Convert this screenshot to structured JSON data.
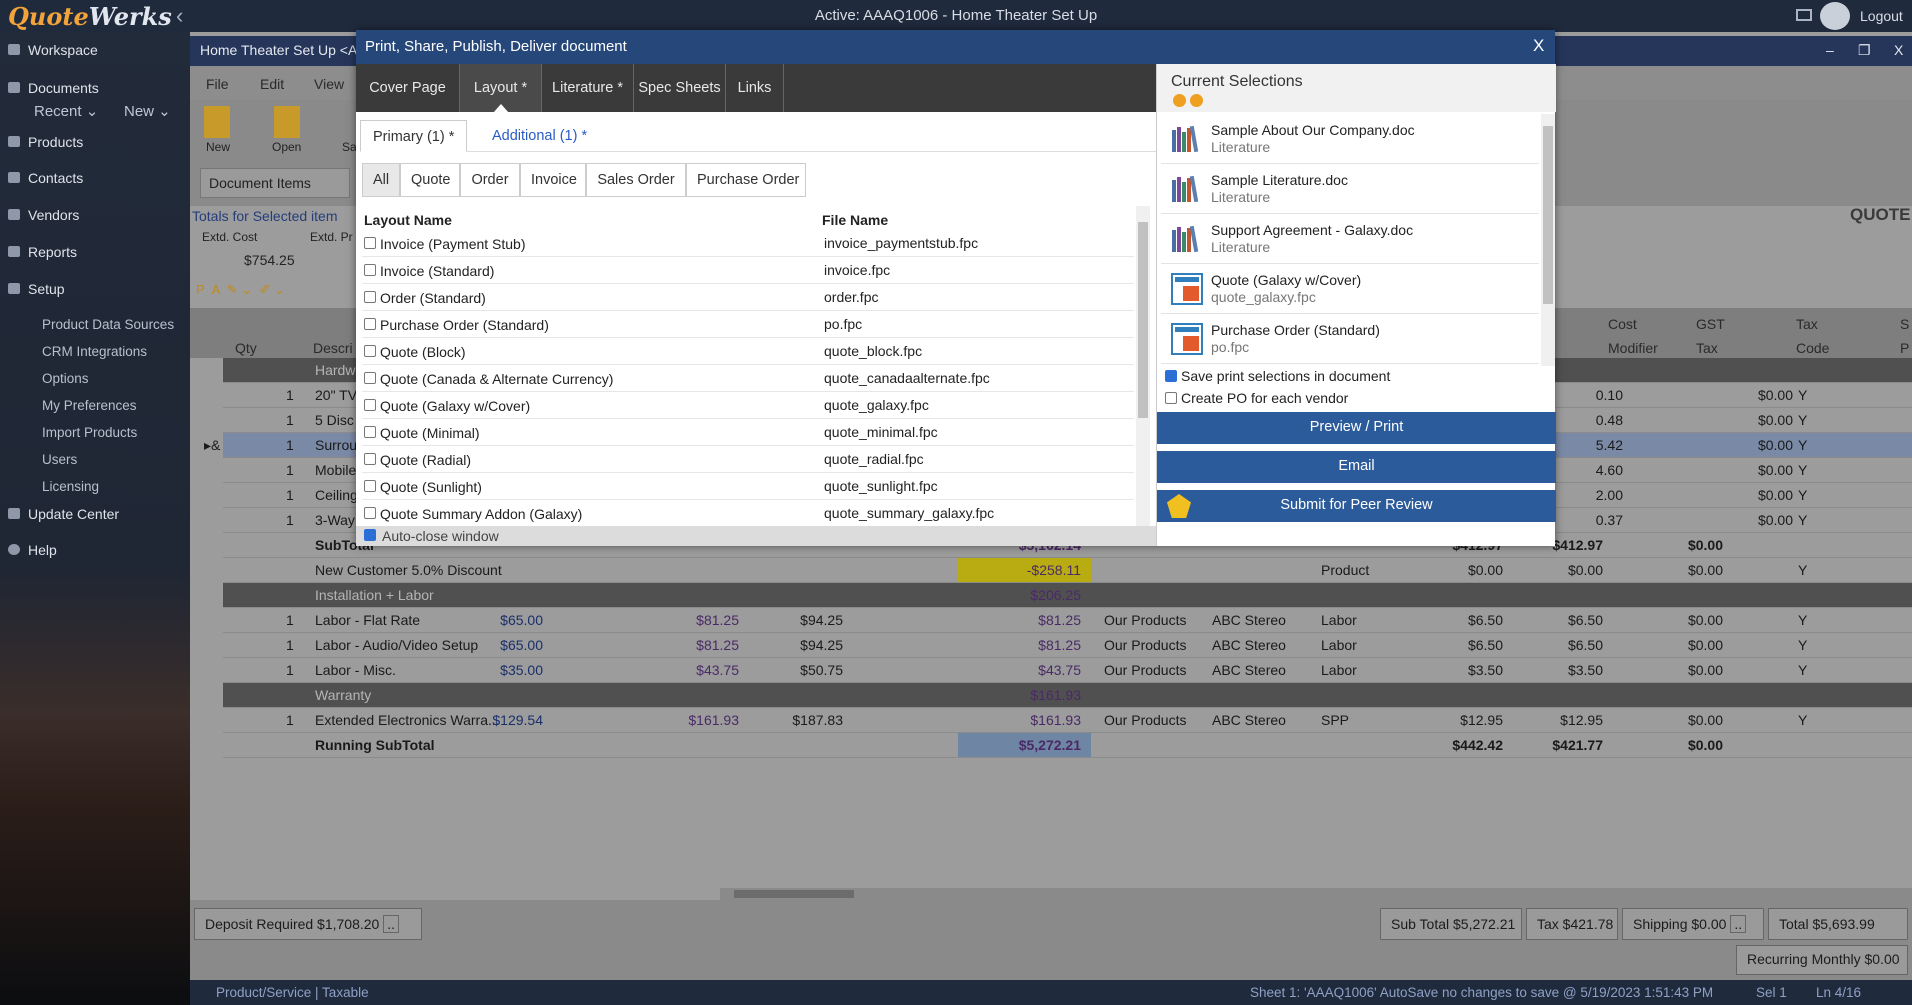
{
  "app": {
    "logo_a": "Quote",
    "logo_b": "Werks",
    "active_title": "Active: AAAQ1006 - Home Theater Set Up",
    "logout": "Logout"
  },
  "sidebar": {
    "workspace": "Workspace",
    "documents": "Documents",
    "recent": "Recent",
    "new": "New",
    "products": "Products",
    "contacts": "Contacts",
    "vendors": "Vendors",
    "reports": "Reports",
    "setup": "Setup",
    "setup_items": [
      "Product Data Sources",
      "CRM Integrations",
      "Options",
      "My Preferences",
      "Import Products",
      "Users",
      "Licensing"
    ],
    "update_center": "Update Center",
    "help": "Help"
  },
  "window": {
    "title": "Home Theater Set Up <A",
    "min": "–",
    "max": "❐",
    "close": "X"
  },
  "menu": {
    "file": "File",
    "edit": "Edit",
    "view": "View"
  },
  "toolbar": {
    "new": "New",
    "open": "Open",
    "save": "Sa"
  },
  "doc_items": "Document Items",
  "totals_for_selected": "Totals for Selected item",
  "extd_cost": "Extd. Cost",
  "extd_pr": "Extd. Pr",
  "extd_cost_value": "$754.25",
  "quote_label": "QUOTE",
  "grid_headers": {
    "qty": "Qty",
    "descr": "Descri",
    "cost": "Cost",
    "modifier": "Modifier",
    "gst": "GST",
    "tax": "Tax",
    "tax2": "Tax",
    "code": "Code",
    "s": "S",
    "p": "P"
  },
  "rows": [
    {
      "type": "sec",
      "desc": "Hardw"
    },
    {
      "qty": "1",
      "desc": "20\" TV",
      "c1": "0.10",
      "tax": "$0.00",
      "code": "Y"
    },
    {
      "qty": "1",
      "desc": "5 Disc",
      "c1": "0.48",
      "tax": "$0.00",
      "code": "Y"
    },
    {
      "qty": "1",
      "desc": "Surrou",
      "c1": "5.42",
      "tax": "$0.00",
      "code": "Y",
      "sel": true,
      "marker": "▸&"
    },
    {
      "qty": "1",
      "desc": "Mobile",
      "c1": "4.60",
      "tax": "$0.00",
      "code": "Y"
    },
    {
      "qty": "1",
      "desc": "Ceiling",
      "c1": "2.00",
      "tax": "$0.00",
      "code": "Y"
    },
    {
      "qty": "1",
      "desc": "3-Way",
      "c1": "0.37",
      "tax": "$0.00",
      "code": "Y"
    }
  ],
  "lower_rows": [
    {
      "kind": "subtotal",
      "desc": "SubTotal",
      "price": "$5,162.14",
      "cost": "$412.97",
      "mod": "$412.97",
      "tax": "$0.00"
    },
    {
      "kind": "discount",
      "desc": "New Customer 5.0% Discount",
      "price": "-$258.11",
      "prodtype": "Product",
      "cost": "$0.00",
      "mod": "$0.00",
      "tax": "$0.00",
      "code": "Y"
    },
    {
      "kind": "sec",
      "desc": "Installation + Labor",
      "price": "$206.25"
    },
    {
      "kind": "item",
      "qty": "1",
      "desc": "Labor - Flat Rate",
      "list": "$65.00",
      "unit": "$81.25",
      "msrp": "$94.25",
      "price": "$81.25",
      "vendor": "Our Products",
      "mfr": "ABC Stereo",
      "prodtype": "Labor",
      "cost": "$6.50",
      "mod": "$6.50",
      "tax": "$0.00",
      "code": "Y"
    },
    {
      "kind": "item",
      "qty": "1",
      "desc": "Labor - Audio/Video Setup",
      "list": "$65.00",
      "unit": "$81.25",
      "msrp": "$94.25",
      "price": "$81.25",
      "vendor": "Our Products",
      "mfr": "ABC Stereo",
      "prodtype": "Labor",
      "cost": "$6.50",
      "mod": "$6.50",
      "tax": "$0.00",
      "code": "Y"
    },
    {
      "kind": "item",
      "qty": "1",
      "desc": "Labor - Misc.",
      "list": "$35.00",
      "unit": "$43.75",
      "msrp": "$50.75",
      "price": "$43.75",
      "vendor": "Our Products",
      "mfr": "ABC Stereo",
      "prodtype": "Labor",
      "cost": "$3.50",
      "mod": "$3.50",
      "tax": "$0.00",
      "code": "Y"
    },
    {
      "kind": "sec",
      "desc": "Warranty",
      "price": "$161.93"
    },
    {
      "kind": "item",
      "qty": "1",
      "desc": "Extended Electronics Warra...",
      "list": "$129.54",
      "unit": "$161.93",
      "msrp": "$187.83",
      "price": "$161.93",
      "vendor": "Our Products",
      "mfr": "ABC Stereo",
      "prodtype": "SPP",
      "cost": "$12.95",
      "mod": "$12.95",
      "tax": "$0.00",
      "code": "Y"
    },
    {
      "kind": "running",
      "desc": "Running SubTotal",
      "price": "$5,272.21",
      "cost": "$442.42",
      "mod": "$421.77",
      "tax": "$0.00"
    }
  ],
  "footer": {
    "deposit": "Deposit Required  $1,708.20",
    "subtotal": "Sub Total  $5,272.21",
    "tax": "Tax  $421.78",
    "shipping": "Shipping  $0.00",
    "total": "Total  $5,693.99",
    "recurring": "Recurring Monthly  $0.00",
    "dots": ".."
  },
  "status": {
    "left": "Product/Service | Taxable",
    "right": "Sheet 1: 'AAAQ1006' AutoSave no changes to save @ 5/19/2023 1:51:43 PM",
    "sel": "Sel 1",
    "ln": "Ln 4/16"
  },
  "dialog": {
    "title": "Print, Share, Publish, Deliver document",
    "close": "X",
    "tabs": [
      "Cover Page",
      "Layout *",
      "Literature *",
      "Spec Sheets",
      "Links"
    ],
    "subtabs": [
      "Primary (1) *",
      "Additional (1) *"
    ],
    "filters": [
      "All",
      "Quote",
      "Order",
      "Invoice",
      "Sales Order",
      "Purchase Order"
    ],
    "col_layout": "Layout Name",
    "col_file": "File Name",
    "layouts": [
      {
        "name": "Invoice (Payment Stub)",
        "file": "invoice_paymentstub.fpc"
      },
      {
        "name": "Invoice (Standard)",
        "file": "invoice.fpc"
      },
      {
        "name": "Order (Standard)",
        "file": "order.fpc"
      },
      {
        "name": "Purchase Order (Standard)",
        "file": "po.fpc"
      },
      {
        "name": "Quote (Block)",
        "file": "quote_block.fpc"
      },
      {
        "name": "Quote (Canada & Alternate Currency)",
        "file": "quote_canadaalternate.fpc"
      },
      {
        "name": "Quote (Galaxy w/Cover)",
        "file": "quote_galaxy.fpc"
      },
      {
        "name": "Quote (Minimal)",
        "file": "quote_minimal.fpc"
      },
      {
        "name": "Quote (Radial)",
        "file": "quote_radial.fpc"
      },
      {
        "name": "Quote (Sunlight)",
        "file": "quote_sunlight.fpc"
      },
      {
        "name": "Quote Summary Addon (Galaxy)",
        "file": "quote_summary_galaxy.fpc"
      }
    ],
    "autoclose": "Auto-close window",
    "current_selections": "Current Selections",
    "selections": [
      {
        "name": "Sample About Our Company.doc",
        "type": "Literature",
        "icon": "books-icon"
      },
      {
        "name": "Sample Literature.doc",
        "type": "Literature",
        "icon": "books-icon"
      },
      {
        "name": "Support Agreement - Galaxy.doc",
        "type": "Literature",
        "icon": "books-icon"
      },
      {
        "name": "Quote (Galaxy w/Cover)",
        "type": "quote_galaxy.fpc",
        "icon": "layout-icon"
      },
      {
        "name": "Purchase Order (Standard)",
        "type": "po.fpc",
        "icon": "layout-icon"
      }
    ],
    "save_selections": "Save print selections in document",
    "create_po": "Create PO for each vendor",
    "preview_print": "Preview / Print",
    "email": "Email",
    "peer_review": "Submit for Peer Review"
  }
}
